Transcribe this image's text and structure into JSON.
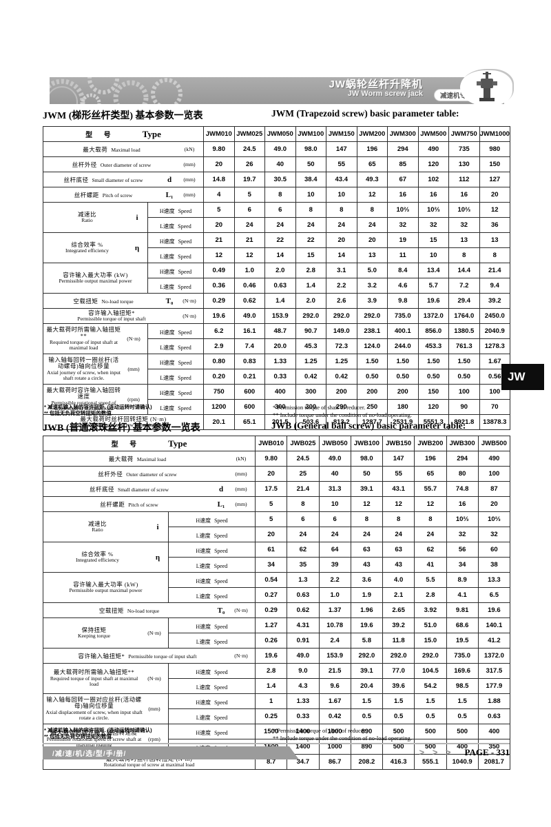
{
  "page": {
    "brand_cn": "JW蜗轮丝杆升降机",
    "brand_en": "JW Worm screw jack",
    "badge": "减速机专业制造商",
    "side_tab": "JW",
    "footer_handbook": "/减/速/机/选/型/手/册/",
    "footer_arrows": "> > >",
    "footer_page": "PAGE - 331"
  },
  "colors": {
    "banner_gray": "#a1a1a1",
    "tab_black": "#0d0d0d",
    "footer_band_gray": "#9b9b9b"
  },
  "speed": {
    "h": "H速度",
    "l": "L速度",
    "en": "Speed"
  },
  "header_label": {
    "cn": "型 号",
    "en": "Type"
  },
  "jwm": {
    "title_cn": "JWM (梯形丝杆类型) 基本参数一览表",
    "title_en": "JWM  (Trapezoid screw) basic parameter table:",
    "models": [
      "JWM010",
      "JWM025",
      "JWM050",
      "JWM100",
      "JWM150",
      "JWM200",
      "JWM300",
      "JWM500",
      "JWM750",
      "JWM1000"
    ],
    "rows": [
      {
        "cn": "最大载荷",
        "en": "Maximal load",
        "unit": "(kN)",
        "values": [
          "9.80",
          "24.5",
          "49.0",
          "98.0",
          "147",
          "196",
          "294",
          "490",
          "735",
          "980"
        ]
      },
      {
        "cn": "丝杆外径",
        "en": "Outer diameter of screw",
        "unit": "(mm)",
        "values": [
          "20",
          "26",
          "40",
          "50",
          "55",
          "65",
          "85",
          "120",
          "130",
          "150"
        ]
      },
      {
        "cn": "丝杆底径",
        "en": "Small diameter of screw",
        "sym": "d",
        "unit": "(mm)",
        "values": [
          "14.8",
          "19.7",
          "30.5",
          "38.4",
          "43.4",
          "49.3",
          "67",
          "102",
          "112",
          "127"
        ]
      },
      {
        "cn": "丝杆螺距",
        "en": "Pitch of screw",
        "sym": "L₁",
        "unit": "(mm)",
        "values": [
          "4",
          "5",
          "8",
          "10",
          "10",
          "12",
          "16",
          "16",
          "16",
          "20"
        ]
      },
      {
        "cn": "减速比",
        "en": "Ratio",
        "sym": "i",
        "h": [
          "5",
          "6",
          "6",
          "8",
          "8",
          "8",
          "10⅔",
          "10⅔",
          "10⅔",
          "12"
        ],
        "l": [
          "20",
          "24",
          "24",
          "24",
          "24",
          "24",
          "32",
          "32",
          "32",
          "36"
        ]
      },
      {
        "cn": "综合效率 %",
        "en": "Integrated efficiency",
        "sym": "η",
        "h": [
          "21",
          "21",
          "22",
          "22",
          "20",
          "20",
          "19",
          "15",
          "13",
          "13"
        ],
        "l": [
          "12",
          "12",
          "14",
          "15",
          "14",
          "13",
          "11",
          "10",
          "8",
          "8"
        ]
      },
      {
        "cn": "容许输入最大功率 (kW)",
        "en": "Permissible output maximal power",
        "h": [
          "0.49",
          "1.0",
          "2.0",
          "2.8",
          "3.1",
          "5.0",
          "8.4",
          "13.4",
          "14.4",
          "21.4"
        ],
        "l": [
          "0.36",
          "0.46",
          "0.63",
          "1.4",
          "2.2",
          "3.2",
          "4.6",
          "5.7",
          "7.2",
          "9.4"
        ]
      },
      {
        "cn": "空载扭矩",
        "en": "No-load torque",
        "sym": "T₀",
        "unit": "(N·m)",
        "values": [
          "0.29",
          "0.62",
          "1.4",
          "2.0",
          "2.6",
          "3.9",
          "9.8",
          "19.6",
          "29.4",
          "39.2"
        ]
      },
      {
        "cn": "容许输入轴扭矩*",
        "en": "Permissible torque of input shaft",
        "unit": "(N·m)",
        "stack": true,
        "values": [
          "19.6",
          "49.0",
          "153.9",
          "292.0",
          "292.0",
          "292.0",
          "735.0",
          "1372.0",
          "1764.0",
          "2450.0"
        ]
      },
      {
        "cn": "最大载荷时所需输入轴扭矩 **",
        "en": "Required torque of input shaft at maximal load",
        "unit": "(N·m)",
        "h": [
          "6.2",
          "16.1",
          "48.7",
          "90.7",
          "149.0",
          "238.1",
          "400.1",
          "856.0",
          "1380.5",
          "2040.9"
        ],
        "l": [
          "2.9",
          "7.4",
          "20.0",
          "45.3",
          "72.3",
          "124.0",
          "244.0",
          "453.3",
          "761.3",
          "1278.3"
        ]
      },
      {
        "cn": "输入轴每回转一圈丝杆(活动螺母)轴向位移量",
        "en": "Axial journey of screw, when input shaft rotate a circle.",
        "unit": "(mm)",
        "h": [
          "0.80",
          "0.83",
          "1.33",
          "1.25",
          "1.25",
          "1.50",
          "1.50",
          "1.50",
          "1.50",
          "1.67"
        ],
        "l": [
          "0.20",
          "0.21",
          "0.33",
          "0.42",
          "0.42",
          "0.50",
          "0.50",
          "0.50",
          "0.50",
          "0.56"
        ]
      },
      {
        "cn": "最大载荷时容许输入轴回转速度",
        "en": "Permissible rotational speed of screw shaft at maximal load",
        "unit": "(rpm)",
        "h": [
          "750",
          "600",
          "400",
          "300",
          "200",
          "200",
          "200",
          "150",
          "100",
          "100"
        ],
        "l": [
          "1200",
          "600",
          "300",
          "300",
          "290",
          "250",
          "180",
          "120",
          "90",
          "70"
        ]
      },
      {
        "cn": "最大载荷时丝杆回转扭矩 (N·m)",
        "en": "Rotational torque of screw at maximal load",
        "stack": true,
        "values": [
          "20.1",
          "65.1",
          "201.5",
          "503.6",
          "813.2",
          "1287.7",
          "2531.9",
          "5551.3",
          "8921.8",
          "13878.3"
        ]
      }
    ],
    "footnote_cn_1": "* 减速机输入轴的容许扭矩. (连动运转时请确认)",
    "footnote_cn_2": "** 包括无负荷空转扭矩的数值.",
    "footnote_en_1": "* Permission torque of shaft of reducer.",
    "footnote_en_2": "** Include torque under the condition of no-load operating."
  },
  "jwb": {
    "title_cn": "JWB (普通滚珠丝杆) 基本参数一览表",
    "title_en": "JWB  (General ball screw) basic parameter table:",
    "models": [
      "JWB010",
      "JWB025",
      "JWB050",
      "JWB100",
      "JWB150",
      "JWB200",
      "JWB300",
      "JWB500"
    ],
    "rows": [
      {
        "cn": "最大载荷",
        "en": "Maximal load",
        "unit": "(kN)",
        "values": [
          "9.80",
          "24.5",
          "49.0",
          "98.0",
          "147",
          "196",
          "294",
          "490"
        ]
      },
      {
        "cn": "丝杆外径",
        "en": "Outer diameter of screw",
        "unit": "(mm)",
        "values": [
          "20",
          "25",
          "40",
          "50",
          "55",
          "65",
          "80",
          "100"
        ]
      },
      {
        "cn": "丝杆底径",
        "en": "Small diameter of screw",
        "sym": "d",
        "unit": "(mm)",
        "values": [
          "17.5",
          "21.4",
          "31.3",
          "39.1",
          "43.1",
          "55.7",
          "74.8",
          "87"
        ]
      },
      {
        "cn": "丝杆螺距",
        "en": "Pitch of screw",
        "sym": "L₁",
        "unit": "(mm)",
        "values": [
          "5",
          "8",
          "10",
          "12",
          "12",
          "12",
          "16",
          "20"
        ]
      },
      {
        "cn": "减速比",
        "en": "Ratio",
        "sym": "i",
        "h": [
          "5",
          "6",
          "6",
          "8",
          "8",
          "8",
          "10⅔",
          "10⅔"
        ],
        "l": [
          "20",
          "24",
          "24",
          "24",
          "24",
          "24",
          "32",
          "32"
        ]
      },
      {
        "cn": "综合效率 %",
        "en": "Integrated efficiency",
        "sym": "η",
        "h": [
          "61",
          "62",
          "64",
          "63",
          "63",
          "62",
          "56",
          "60"
        ],
        "l": [
          "34",
          "35",
          "39",
          "43",
          "43",
          "41",
          "34",
          "38"
        ]
      },
      {
        "cn": "容许输入最大功率 (kW)",
        "en": "Permissible output maximal power",
        "h": [
          "0.54",
          "1.3",
          "2.2",
          "3.6",
          "4.0",
          "5.5",
          "8.9",
          "13.3"
        ],
        "l": [
          "0.27",
          "0.63",
          "1.0",
          "1.9",
          "2.1",
          "2.8",
          "4.1",
          "6.5"
        ]
      },
      {
        "cn": "空载扭矩",
        "en": "No-load torque",
        "sym": "T₀",
        "unit": "(N·m)",
        "values": [
          "0.29",
          "0.62",
          "1.37",
          "1.96",
          "2.65",
          "3.92",
          "9.81",
          "19.6"
        ]
      },
      {
        "cn": "保持扭矩",
        "en": "Keeping torque",
        "unit": "(N·m)",
        "h": [
          "1.27",
          "4.31",
          "10.78",
          "19.6",
          "39.2",
          "51.0",
          "68.6",
          "140.1"
        ],
        "l": [
          "0.26",
          "0.91",
          "2.4",
          "5.8",
          "11.8",
          "15.0",
          "19.5",
          "41.2"
        ]
      },
      {
        "cn": "容许输入轴扭矩*",
        "en": "Permissible torque of input shaft",
        "unit": "(N·m)",
        "values": [
          "19.6",
          "49.0",
          "153.9",
          "292.0",
          "292.0",
          "292.0",
          "735.0",
          "1372.0"
        ]
      },
      {
        "cn": "最大载荷时所需输入轴扭矩**",
        "en": "Required torque of input shaft at maximal load",
        "unit": "(N·m)",
        "h": [
          "2.8",
          "9.0",
          "21.5",
          "39.1",
          "77.0",
          "104.5",
          "169.6",
          "317.5"
        ],
        "l": [
          "1.4",
          "4.3",
          "9.6",
          "20.4",
          "39.6",
          "54.2",
          "98.5",
          "177.9"
        ]
      },
      {
        "cn": "输入轴每回转一圈对应丝杆(活动螺母)轴向位移量",
        "en": "Axial displacement of screw, when input shaft rotate a circle.",
        "unit": "(mm)",
        "h": [
          "1",
          "1.33",
          "1.67",
          "1.5",
          "1.5",
          "1.5",
          "1.5",
          "1.88"
        ],
        "l": [
          "0.25",
          "0.33",
          "0.42",
          "0.5",
          "0.5",
          "0.5",
          "0.5",
          "0.63"
        ]
      },
      {
        "cn": "最大载荷时容许输入轴回转速度",
        "en": "Permissible rotational speed of screw shaft at maximal loading",
        "unit": "(rpm)",
        "h": [
          "1500",
          "1400",
          "1000",
          "890",
          "500",
          "500",
          "500",
          "400"
        ],
        "l": [
          "1500",
          "1400",
          "1000",
          "890",
          "500",
          "500",
          "400",
          "350"
        ]
      },
      {
        "cn": "最大载荷时丝杆回转扭矩 (N·m)",
        "en": "Rotational torque of screw at maximal load",
        "stack": true,
        "values": [
          "8.7",
          "34.7",
          "86.7",
          "208.2",
          "416.3",
          "555.1",
          "1040.9",
          "2081.7"
        ]
      }
    ],
    "footnote_cn_1": "* 减速机输入轴的容许扭矩. (连动运转时请确认)",
    "footnote_cn_2": "** 包括无负荷空转扭矩的数值.",
    "footnote_en_1": "* Permissible torque of shaft of reducer.",
    "footnote_en_2": "** Include torque under the condition of no-load operating."
  }
}
